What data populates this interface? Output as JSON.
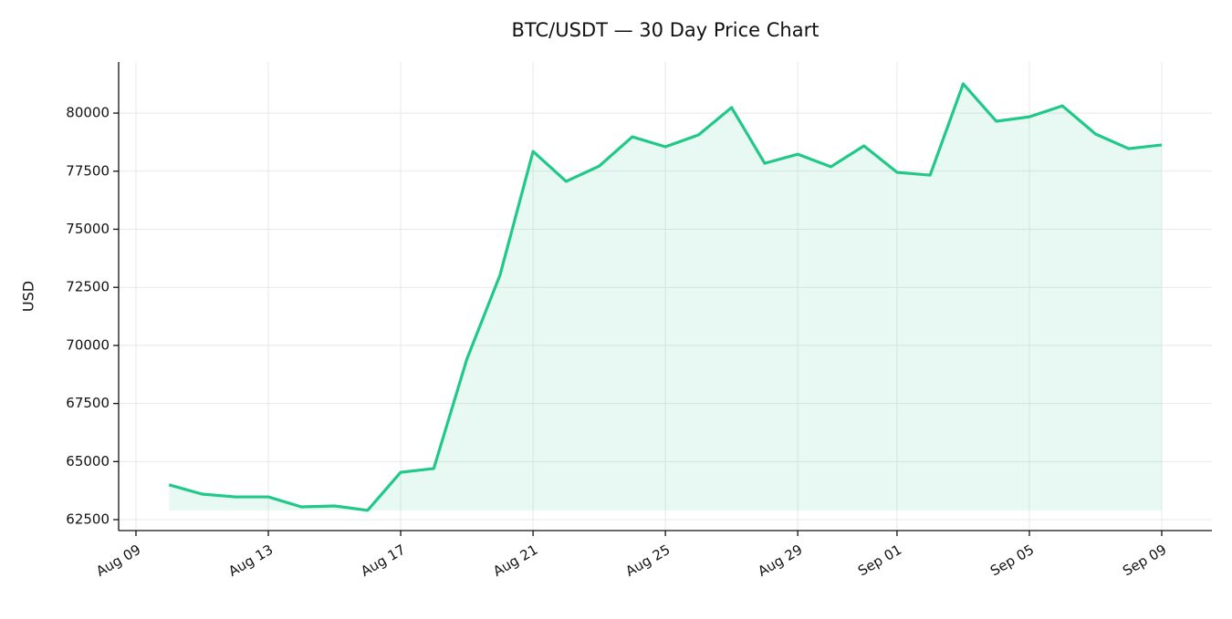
{
  "chart_data": {
    "type": "area-line",
    "title": "BTC/USDT — 30 Day Price Chart",
    "y_label": "USD",
    "x": [
      "Aug 10",
      "Aug 11",
      "Aug 12",
      "Aug 13",
      "Aug 14",
      "Aug 15",
      "Aug 16",
      "Aug 17",
      "Aug 18",
      "Aug 19",
      "Aug 20",
      "Aug 21",
      "Aug 22",
      "Aug 23",
      "Aug 24",
      "Aug 25",
      "Aug 26",
      "Aug 27",
      "Aug 28",
      "Aug 29",
      "Aug 30",
      "Aug 31",
      "Sep 01",
      "Sep 02",
      "Sep 03",
      "Sep 04",
      "Sep 05",
      "Sep 06",
      "Sep 07",
      "Sep 08",
      "Sep 09"
    ],
    "values": [
      64000,
      63600,
      63480,
      63480,
      63050,
      63090,
      62900,
      64540,
      64700,
      69410,
      73020,
      78350,
      77060,
      77720,
      78980,
      78550,
      79060,
      80240,
      77840,
      78230,
      77690,
      78590,
      77450,
      77330,
      81260,
      79650,
      79840,
      80310,
      79100,
      78470,
      78630
    ],
    "color": "#20c987",
    "xticks": [
      "Aug 09",
      "Aug 13",
      "Aug 17",
      "Aug 21",
      "Aug 25",
      "Aug 29",
      "Sep 01",
      "Sep 05",
      "Sep 09"
    ],
    "ylim": [
      62030,
      82200
    ],
    "yticks": [
      62500,
      65000,
      67500,
      70000,
      72500,
      75000,
      77500,
      80000
    ],
    "grid": true
  }
}
